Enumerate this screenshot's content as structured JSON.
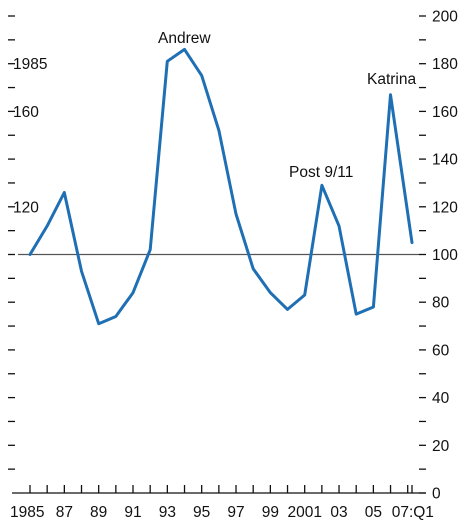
{
  "chart_data": {
    "type": "line",
    "title": "",
    "xlabel": "",
    "ylabel": "",
    "x": [
      1985,
      1986,
      1987,
      1988,
      1989,
      1990,
      1991,
      1992,
      1993,
      1994,
      1995,
      1996,
      1997,
      1998,
      1999,
      2000,
      2001,
      2002,
      2003,
      2004,
      2005,
      2006,
      2007.25
    ],
    "values": [
      100,
      112,
      126,
      93,
      71,
      74,
      84,
      102,
      181,
      186,
      175,
      152,
      117,
      94,
      84,
      77,
      83,
      129,
      112,
      75,
      78,
      167,
      105
    ],
    "ylim": [
      0,
      200
    ],
    "xlim": [
      1985,
      2007.25
    ],
    "yticks": [
      0,
      20,
      40,
      60,
      80,
      100,
      120,
      140,
      160,
      180,
      200
    ],
    "ytick_labels": [
      "0",
      "20",
      "40",
      "60",
      "80",
      "100",
      "120",
      "140",
      "160",
      "180",
      "200"
    ],
    "left_ytick_labels": [
      "",
      "",
      "",
      "",
      "",
      "",
      "120",
      "",
      "160",
      "1985",
      ""
    ],
    "xticks": [
      1985,
      1987,
      1989,
      1991,
      1993,
      1995,
      1997,
      1999,
      2001,
      2003,
      2005,
      2007
    ],
    "xtick_labels": [
      "1985",
      "87",
      "89",
      "91",
      "93",
      "95",
      "97",
      "99",
      "2001",
      "03",
      "05",
      "07:Q1"
    ],
    "reference_line": 100,
    "annotations": [
      {
        "text": "Andrew",
        "x": 1994,
        "y": 186
      },
      {
        "text": "Post 9/11",
        "x": 2002,
        "y": 129
      },
      {
        "text": "Katrina",
        "x": 2006,
        "y": 167
      }
    ],
    "grid": false,
    "legend": "none",
    "colors": {
      "series": "#1f6fb4",
      "reference": "#555555",
      "text": "#111111"
    }
  }
}
